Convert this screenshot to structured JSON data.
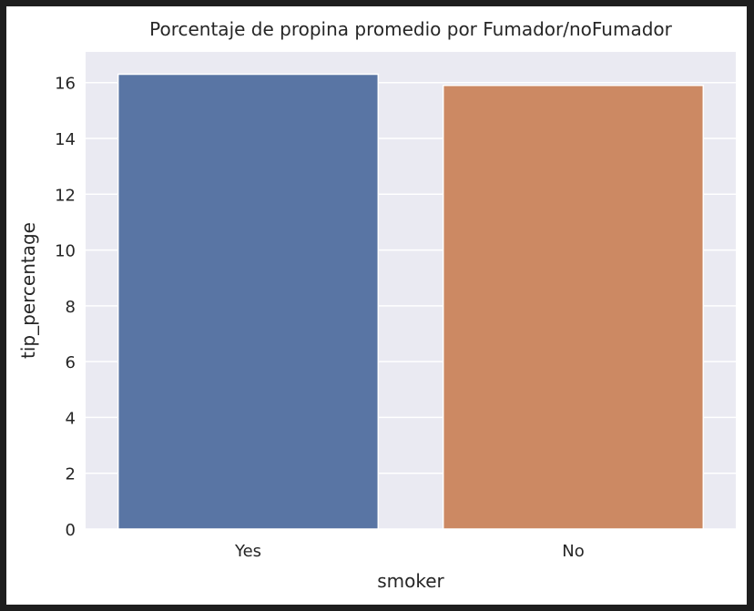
{
  "chart_data": {
    "type": "bar",
    "title": "Porcentaje de propina promedio por Fumador/noFumador",
    "xlabel": "smoker",
    "ylabel": "tip_percentage",
    "categories": [
      "Yes",
      "No"
    ],
    "values": [
      16.3,
      15.9
    ],
    "ylim": [
      0,
      17.1
    ],
    "yticks": [
      "0",
      "2",
      "4",
      "6",
      "8",
      "10",
      "12",
      "14",
      "16"
    ],
    "colors": [
      "#5975a4",
      "#cc8963"
    ],
    "background": "#eaeaf2",
    "grid": true
  }
}
